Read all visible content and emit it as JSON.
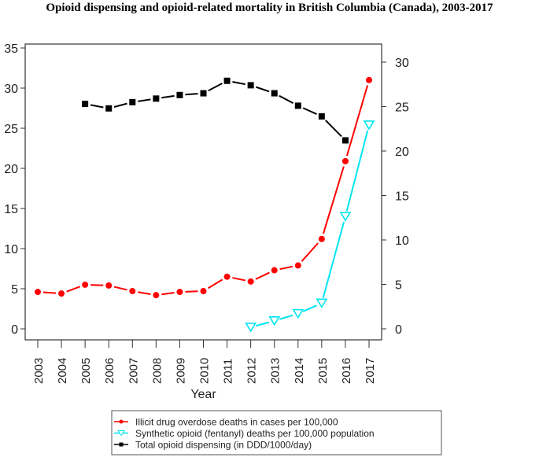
{
  "chart_data": {
    "type": "line",
    "title": "Opioid dispensing and opioid-related mortality in British Columbia (Canada), 2003-2017",
    "xlabel": "Year",
    "x": [
      2003,
      2004,
      2005,
      2006,
      2007,
      2008,
      2009,
      2010,
      2011,
      2012,
      2013,
      2014,
      2015,
      2016,
      2017
    ],
    "y_left_lim": [
      0,
      35
    ],
    "y_left_ticks": [
      0,
      5,
      10,
      15,
      20,
      25,
      30,
      35
    ],
    "y_right_lim": [
      0,
      30
    ],
    "y_right_ticks": [
      0,
      5,
      10,
      15,
      20,
      25,
      30
    ],
    "legend_placement": "bottom",
    "grid": false,
    "series": [
      {
        "name": "Illicit drug overdose deaths in cases per 100,000",
        "axis": "left",
        "color": "#ff0000",
        "marker": "circle",
        "values": [
          4.6,
          4.4,
          5.5,
          5.4,
          4.7,
          4.2,
          4.6,
          4.7,
          6.5,
          5.9,
          7.3,
          7.9,
          11.2,
          20.9,
          31.0
        ]
      },
      {
        "name": "Synthetic opioid (fentanyl) deaths per 100,000 population",
        "axis": "left",
        "color": "#00e5ee",
        "marker": "triangle-down-open",
        "values": [
          null,
          null,
          null,
          null,
          null,
          null,
          null,
          null,
          null,
          0.2,
          1.0,
          1.9,
          3.2,
          14.0,
          25.4
        ]
      },
      {
        "name": "Total opioid dispensing (in DDD/1000/day)",
        "axis": "right",
        "color": "#000000",
        "marker": "square",
        "values": [
          null,
          null,
          25.3,
          24.8,
          25.5,
          25.9,
          26.3,
          26.5,
          27.9,
          27.4,
          26.5,
          25.1,
          23.9,
          21.2,
          null
        ]
      }
    ]
  }
}
